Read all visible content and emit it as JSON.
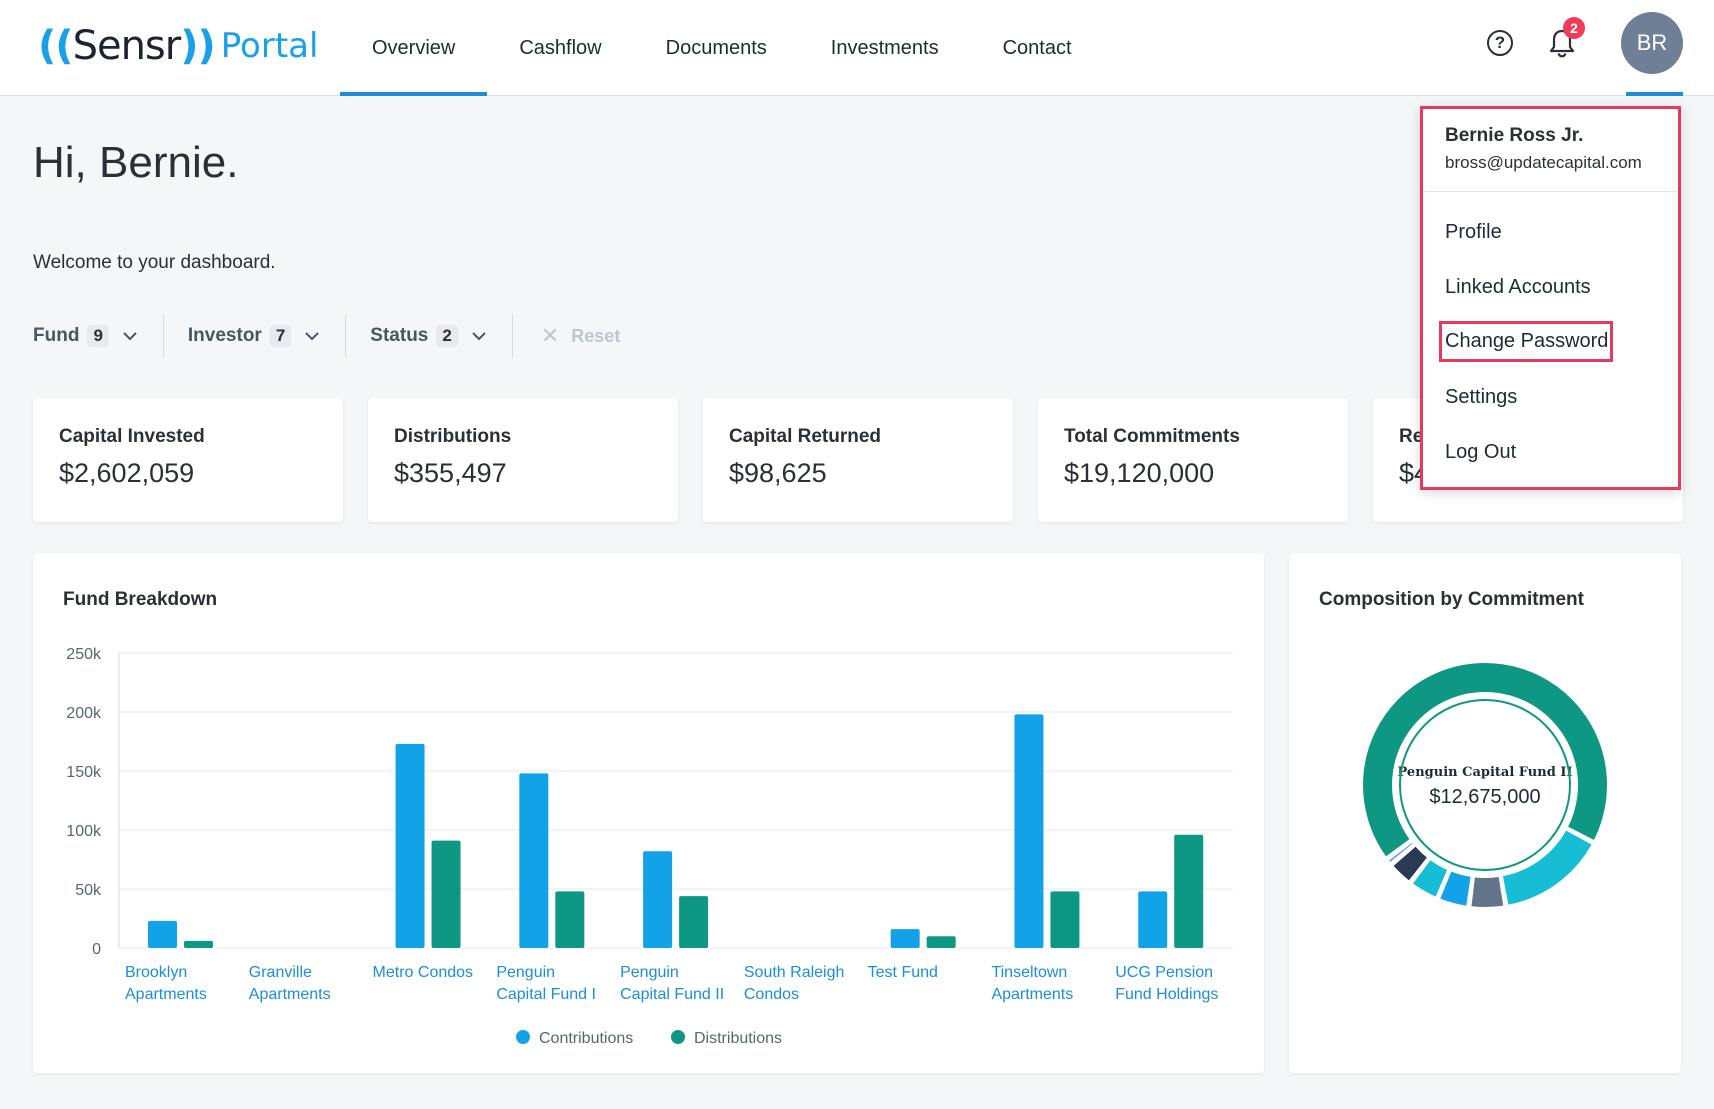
{
  "header": {
    "logo_brand": "Sensr",
    "logo_portal": "Portal",
    "nav": [
      {
        "label": "Overview",
        "active": true
      },
      {
        "label": "Cashflow",
        "active": false
      },
      {
        "label": "Documents",
        "active": false
      },
      {
        "label": "Investments",
        "active": false
      },
      {
        "label": "Contact",
        "active": false
      }
    ],
    "help_icon": "?",
    "notification_count": "2",
    "avatar_initials": "BR"
  },
  "greeting": "Hi, Bernie.",
  "welcome": "Welcome to your dashboard.",
  "filters": [
    {
      "label": "Fund",
      "count": "9"
    },
    {
      "label": "Investor",
      "count": "7"
    },
    {
      "label": "Status",
      "count": "2"
    }
  ],
  "reset_label": "Reset",
  "kpis": [
    {
      "label": "Capital Invested",
      "value": "$2,602,059"
    },
    {
      "label": "Distributions",
      "value": "$355,497"
    },
    {
      "label": "Capital Returned",
      "value": "$98,625"
    },
    {
      "label": "Total Commitments",
      "value": "$19,120,000"
    },
    {
      "label": "Re",
      "value": "$4"
    }
  ],
  "fund_breakdown": {
    "title": "Fund Breakdown"
  },
  "composition": {
    "title": "Composition by Commitment",
    "center_name": "Penguin Capital Fund II",
    "center_value": "$12,675,000"
  },
  "user_menu": {
    "name": "Bernie Ross Jr.",
    "email": "bross@updatecapital.com",
    "items": [
      "Profile",
      "Linked Accounts",
      "Change Password",
      "Settings",
      "Log Out"
    ],
    "highlighted": "Change Password"
  },
  "colors": {
    "accent": "#1a8fd6",
    "contributions": "#12a2e8",
    "distributions": "#0e9884",
    "highlight_border": "#e33a5e"
  },
  "chart_data": [
    {
      "type": "bar",
      "title": "Fund Breakdown",
      "categories": [
        [
          "Brooklyn",
          "Apartments"
        ],
        [
          "Granville",
          "Apartments"
        ],
        [
          "Metro Condos"
        ],
        [
          "Penguin",
          "Capital Fund I"
        ],
        [
          "Penguin",
          "Capital Fund II"
        ],
        [
          "South Raleigh",
          "Condos"
        ],
        [
          "Test Fund"
        ],
        [
          "Tinseltown",
          "Apartments"
        ],
        [
          "UCG Pension",
          "Fund Holdings"
        ]
      ],
      "series": [
        {
          "name": "Contributions",
          "color": "#12a2e8",
          "values": [
            23000,
            0,
            173000,
            148000,
            82000,
            0,
            16000,
            198000,
            48000
          ]
        },
        {
          "name": "Distributions",
          "color": "#0e9884",
          "values": [
            6000,
            0,
            91000,
            48000,
            44000,
            0,
            10000,
            48000,
            96000
          ]
        }
      ],
      "ylim": [
        0,
        250000
      ],
      "yticks": [
        {
          "value": 0,
          "label": "0"
        },
        {
          "value": 50000,
          "label": "50k"
        },
        {
          "value": 100000,
          "label": "100k"
        },
        {
          "value": 150000,
          "label": "150k"
        },
        {
          "value": 200000,
          "label": "200k"
        },
        {
          "value": 250000,
          "label": "250k"
        }
      ],
      "grid": true,
      "legend": "bottom"
    },
    {
      "type": "pie",
      "title": "Composition by Commitment",
      "donut": true,
      "slices": [
        {
          "label": "Penguin Capital Fund II",
          "value": 12675000,
          "color": "#0e9884"
        },
        {
          "label": "",
          "value": 2700000,
          "color": "#17bdd4"
        },
        {
          "label": "",
          "value": 900000,
          "color": "#62738a"
        },
        {
          "label": "",
          "value": 780000,
          "color": "#12a2e8"
        },
        {
          "label": "",
          "value": 760000,
          "color": "#17bdd4"
        },
        {
          "label": "",
          "value": 640000,
          "color": "#2a3a52"
        },
        {
          "label": "",
          "value": 170000,
          "color": "#5b9cf0"
        }
      ]
    }
  ]
}
